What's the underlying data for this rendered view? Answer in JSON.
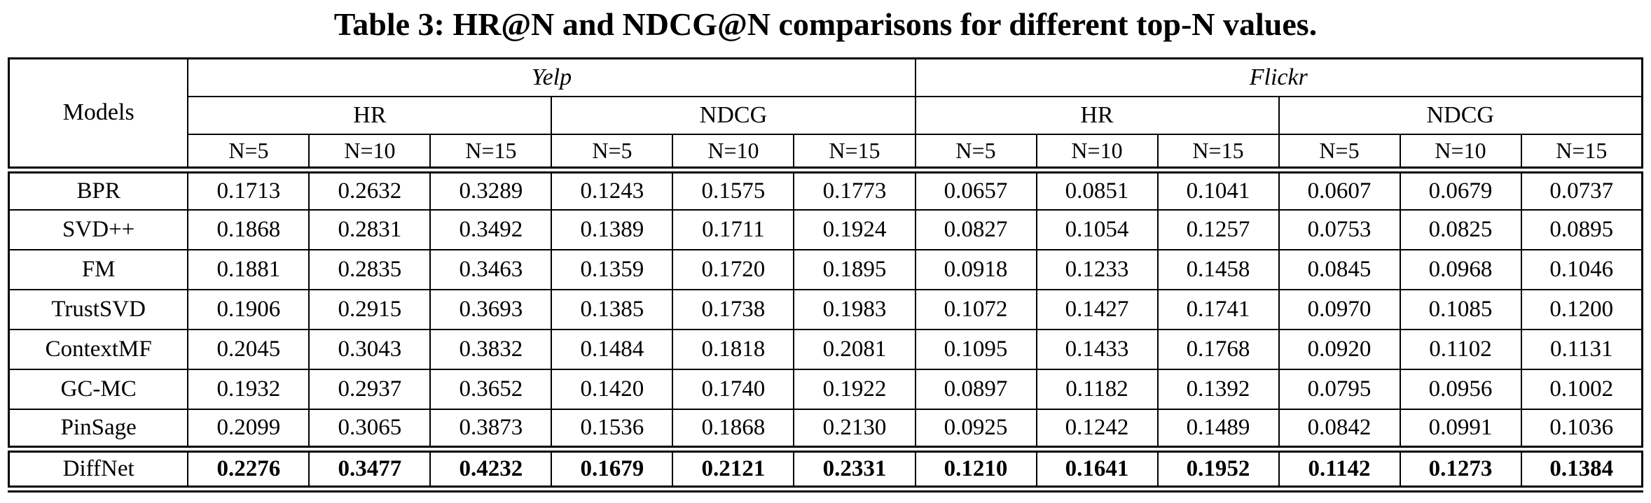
{
  "caption": "Table 3: HR@N and NDCG@N comparisons for different top-N values.",
  "table": {
    "corner_label": "Models",
    "dataset_groups": [
      {
        "label": "Yelp",
        "metrics": [
          "HR",
          "NDCG"
        ]
      },
      {
        "label": "Flickr",
        "metrics": [
          "HR",
          "NDCG"
        ]
      }
    ],
    "topn_labels": [
      "N=5",
      "N=10",
      "N=15"
    ],
    "rows": [
      {
        "model": "BPR",
        "bold": false,
        "values": [
          "0.1713",
          "0.2632",
          "0.3289",
          "0.1243",
          "0.1575",
          "0.1773",
          "0.0657",
          "0.0851",
          "0.1041",
          "0.0607",
          "0.0679",
          "0.0737"
        ]
      },
      {
        "model": "SVD++",
        "bold": false,
        "values": [
          "0.1868",
          "0.2831",
          "0.3492",
          "0.1389",
          "0.1711",
          "0.1924",
          "0.0827",
          "0.1054",
          "0.1257",
          "0.0753",
          "0.0825",
          "0.0895"
        ]
      },
      {
        "model": "FM",
        "bold": false,
        "values": [
          "0.1881",
          "0.2835",
          "0.3463",
          "0.1359",
          "0.1720",
          "0.1895",
          "0.0918",
          "0.1233",
          "0.1458",
          "0.0845",
          "0.0968",
          "0.1046"
        ]
      },
      {
        "model": "TrustSVD",
        "bold": false,
        "values": [
          "0.1906",
          "0.2915",
          "0.3693",
          "0.1385",
          "0.1738",
          "0.1983",
          "0.1072",
          "0.1427",
          "0.1741",
          "0.0970",
          "0.1085",
          "0.1200"
        ]
      },
      {
        "model": "ContextMF",
        "bold": false,
        "values": [
          "0.2045",
          "0.3043",
          "0.3832",
          "0.1484",
          "0.1818",
          "0.2081",
          "0.1095",
          "0.1433",
          "0.1768",
          "0.0920",
          "0.1102",
          "0.1131"
        ]
      },
      {
        "model": "GC-MC",
        "bold": false,
        "values": [
          "0.1932",
          "0.2937",
          "0.3652",
          "0.1420",
          "0.1740",
          "0.1922",
          "0.0897",
          "0.1182",
          "0.1392",
          "0.0795",
          "0.0956",
          "0.1002"
        ]
      },
      {
        "model": "PinSage",
        "bold": false,
        "values": [
          "0.2099",
          "0.3065",
          "0.3873",
          "0.1536",
          "0.1868",
          "0.2130",
          "0.0925",
          "0.1242",
          "0.1489",
          "0.0842",
          "0.0991",
          "0.1036"
        ]
      },
      {
        "model": "DiffNet",
        "bold": true,
        "values": [
          "0.2276",
          "0.3477",
          "0.4232",
          "0.1679",
          "0.2121",
          "0.2331",
          "0.1210",
          "0.1641",
          "0.1952",
          "0.1142",
          "0.1273",
          "0.1384"
        ]
      }
    ]
  }
}
